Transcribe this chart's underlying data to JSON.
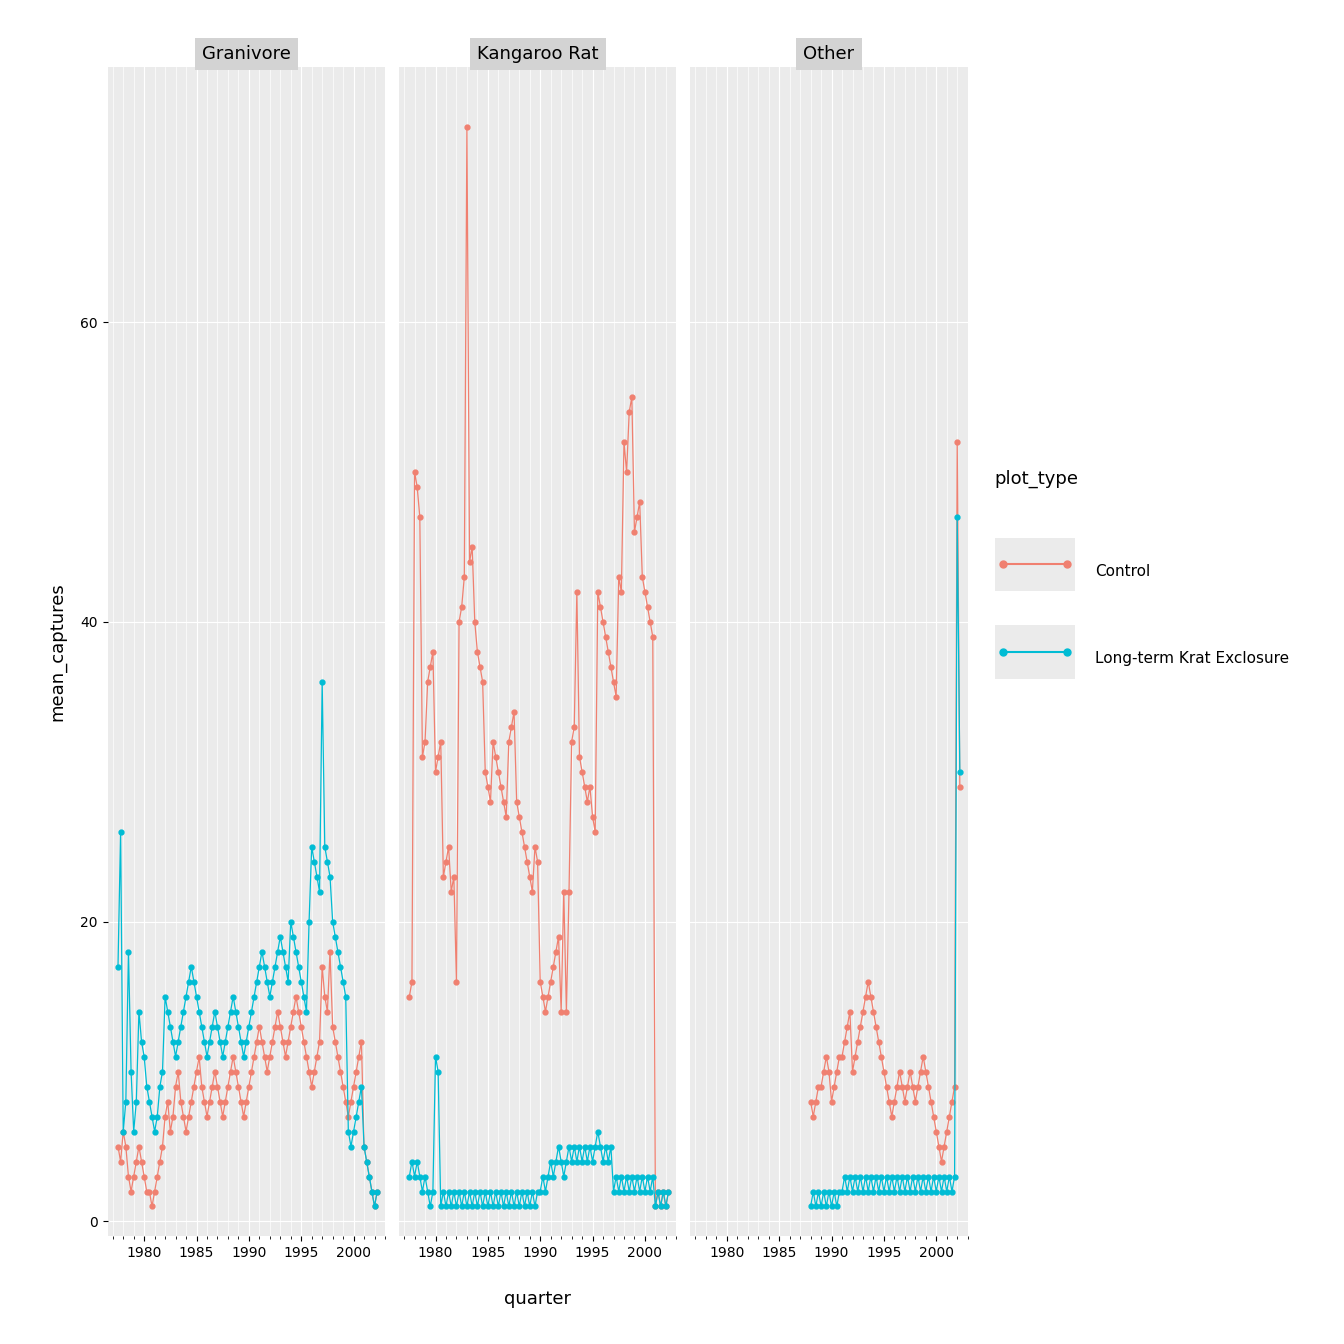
{
  "title": "",
  "ylabel": "mean_captures",
  "xlabel": "quarter",
  "facets": [
    "Granivore",
    "Kangaroo Rat",
    "Other"
  ],
  "colors": {
    "Control": "#F08070",
    "Long-term Krat Exclosure": "#00BCD4"
  },
  "legend_title": "plot_type",
  "background_color": "#EBEBEB",
  "grid_color": "#FFFFFF",
  "ylim": [
    0,
    75
  ],
  "data": {
    "Granivore": {
      "Control": {
        "x": [
          1977.5,
          1977.75,
          1978.0,
          1978.25,
          1978.5,
          1978.75,
          1979.0,
          1979.25,
          1979.5,
          1979.75,
          1980.0,
          1980.25,
          1980.5,
          1980.75,
          1981.0,
          1981.25,
          1981.5,
          1981.75,
          1982.0,
          1982.25,
          1982.5,
          1982.75,
          1983.0,
          1983.25,
          1983.5,
          1983.75,
          1984.0,
          1984.25,
          1984.5,
          1984.75,
          1985.0,
          1985.25,
          1985.5,
          1985.75,
          1986.0,
          1986.25,
          1986.5,
          1986.75,
          1987.0,
          1987.25,
          1987.5,
          1987.75,
          1988.0,
          1988.25,
          1988.5,
          1988.75,
          1989.0,
          1989.25,
          1989.5,
          1989.75,
          1990.0,
          1990.25,
          1990.5,
          1990.75,
          1991.0,
          1991.25,
          1991.5,
          1991.75,
          1992.0,
          1992.25,
          1992.5,
          1992.75,
          1993.0,
          1993.25,
          1993.5,
          1993.75,
          1994.0,
          1994.25,
          1994.5,
          1994.75,
          1995.0,
          1995.25,
          1995.5,
          1995.75,
          1996.0,
          1996.25,
          1996.5,
          1996.75,
          1997.0,
          1997.25,
          1997.5,
          1997.75,
          1998.0,
          1998.25,
          1998.5,
          1998.75,
          1999.0,
          1999.25,
          1999.5,
          1999.75,
          2000.0,
          2000.25,
          2000.5,
          2000.75,
          2001.0,
          2001.25,
          2001.5,
          2001.75,
          2002.0,
          2002.25
        ],
        "y": [
          5,
          4,
          6,
          5,
          3,
          4,
          5,
          6,
          4,
          3,
          5,
          4,
          3,
          2,
          4,
          5,
          6,
          7,
          8,
          9,
          7,
          8,
          10,
          11,
          9,
          8,
          7,
          8,
          9,
          10,
          11,
          12,
          10,
          9,
          8,
          9,
          10,
          11,
          10,
          9,
          8,
          9,
          10,
          11,
          12,
          11,
          10,
          9,
          8,
          9,
          10,
          11,
          12,
          13,
          14,
          13,
          12,
          11,
          12,
          13,
          14,
          15,
          14,
          13,
          12,
          13,
          14,
          15,
          16,
          15,
          14,
          13,
          12,
          11,
          10,
          11,
          12,
          13,
          17,
          16,
          15,
          18,
          14,
          13,
          12,
          11,
          10,
          9,
          8,
          9,
          10,
          11,
          12,
          13,
          5,
          4,
          3,
          2,
          1,
          2
        ]
      },
      "Long-term Krat Exclosure": {
        "x": [
          1977.5,
          1977.75,
          1978.0,
          1978.25,
          1978.5,
          1978.75,
          1979.0,
          1979.25,
          1979.5,
          1979.75,
          1980.0,
          1980.25,
          1980.5,
          1980.75,
          1981.0,
          1981.25,
          1981.5,
          1981.75,
          1982.0,
          1982.25,
          1982.5,
          1982.75,
          1983.0,
          1983.25,
          1983.5,
          1983.75,
          1984.0,
          1984.25,
          1984.5,
          1984.75,
          1985.0,
          1985.25,
          1985.5,
          1985.75,
          1986.0,
          1986.25,
          1986.5,
          1986.75,
          1987.0,
          1987.25,
          1987.5,
          1987.75,
          1988.0,
          1988.25,
          1988.5,
          1988.75,
          1989.0,
          1989.25,
          1989.5,
          1989.75,
          1990.0,
          1990.25,
          1990.5,
          1990.75,
          1991.0,
          1991.25,
          1991.5,
          1991.75,
          1992.0,
          1992.25,
          1992.5,
          1992.75,
          1993.0,
          1993.25,
          1993.5,
          1993.75,
          1994.0,
          1994.25,
          1994.5,
          1994.75,
          1995.0,
          1995.25,
          1995.5,
          1995.75,
          1996.0,
          1996.25,
          1996.5,
          1996.75,
          1997.0,
          1997.25,
          1997.5,
          1997.75,
          1998.0,
          1998.25,
          1998.5,
          1998.75,
          1999.0,
          1999.25,
          1999.5,
          1999.75,
          2000.0,
          2000.25,
          2000.5,
          2000.75,
          2001.0,
          2001.25,
          2001.5,
          2001.75,
          2002.0,
          2002.25
        ],
        "y": [
          17,
          26,
          6,
          8,
          18,
          10,
          6,
          8,
          14,
          12,
          11,
          9,
          8,
          7,
          6,
          7,
          9,
          10,
          15,
          14,
          13,
          12,
          11,
          12,
          13,
          14,
          15,
          16,
          17,
          16,
          15,
          14,
          13,
          12,
          11,
          12,
          13,
          14,
          13,
          12,
          11,
          12,
          13,
          14,
          15,
          14,
          13,
          12,
          11,
          12,
          13,
          14,
          15,
          16,
          17,
          18,
          17,
          16,
          15,
          16,
          17,
          18,
          19,
          18,
          17,
          16,
          20,
          19,
          18,
          17,
          16,
          15,
          14,
          20,
          25,
          24,
          23,
          22,
          36,
          25,
          24,
          23,
          20,
          19,
          18,
          17,
          16,
          15,
          6,
          5,
          6,
          7,
          8,
          9,
          5,
          4,
          3,
          2,
          1,
          2
        ]
      }
    },
    "Kangaroo Rat": {
      "Control": {
        "x": [
          1977.5,
          1977.75,
          1978.0,
          1978.25,
          1978.5,
          1978.75,
          1979.0,
          1979.25,
          1979.5,
          1979.75,
          1980.0,
          1980.25,
          1980.5,
          1980.75,
          1981.0,
          1981.25,
          1981.5,
          1981.75,
          1982.0,
          1982.25,
          1982.5,
          1982.75,
          1983.0,
          1983.25,
          1983.5,
          1983.75,
          1984.0,
          1984.25,
          1984.5,
          1984.75,
          1985.0,
          1985.25,
          1985.5,
          1985.75,
          1986.0,
          1986.25,
          1986.5,
          1986.75,
          1987.0,
          1987.25,
          1987.5,
          1987.75,
          1988.0,
          1988.25,
          1988.5,
          1988.75,
          1989.0,
          1989.25,
          1989.5,
          1989.75,
          1990.0,
          1990.25,
          1990.5,
          1990.75,
          1991.0,
          1991.25,
          1991.5,
          1991.75,
          1992.0,
          1992.25,
          1992.5,
          1992.75,
          1993.0,
          1993.25,
          1993.5,
          1993.75,
          1994.0,
          1994.25,
          1994.5,
          1994.75,
          1995.0,
          1995.25,
          1995.5,
          1995.75,
          1996.0,
          1996.25,
          1996.5,
          1996.75,
          1997.0,
          1997.25,
          1997.5,
          1997.75,
          1998.0,
          1998.25,
          1998.5,
          1998.75,
          1999.0,
          1999.25,
          1999.5,
          1999.75,
          2000.0,
          2000.25,
          2000.5,
          2000.75,
          2001.0,
          2001.25,
          2001.5,
          2001.75,
          2002.0,
          2002.25
        ],
        "y": [
          15,
          16,
          50,
          49,
          47,
          31,
          32,
          36,
          37,
          38,
          30,
          31,
          32,
          23,
          24,
          25,
          22,
          23,
          16,
          40,
          41,
          43,
          73,
          44,
          45,
          40,
          38,
          37,
          36,
          30,
          29,
          28,
          32,
          31,
          30,
          29,
          28,
          27,
          32,
          33,
          34,
          28,
          27,
          26,
          25,
          24,
          23,
          22,
          25,
          24,
          16,
          15,
          14,
          15,
          16,
          17,
          18,
          19,
          14,
          22,
          14,
          22,
          32,
          33,
          42,
          31,
          30,
          29,
          28,
          29,
          27,
          26,
          42,
          41,
          40,
          39,
          38,
          37,
          36,
          35,
          43,
          42,
          52,
          50,
          54,
          55,
          46,
          47,
          48,
          43,
          42,
          41,
          40,
          39,
          1,
          2,
          1,
          2,
          1,
          2
        ]
      },
      "Long-term Krat Exclosure": {
        "x": [
          1977.5,
          1977.75,
          1978.0,
          1978.25,
          1978.5,
          1978.75,
          1979.0,
          1979.25,
          1979.5,
          1979.75,
          1980.0,
          1980.25,
          1980.5,
          1980.75,
          1981.0,
          1981.25,
          1981.5,
          1981.75,
          1982.0,
          1982.25,
          1982.5,
          1982.75,
          1983.0,
          1983.25,
          1983.5,
          1983.75,
          1984.0,
          1984.25,
          1984.5,
          1984.75,
          1985.0,
          1985.25,
          1985.5,
          1985.75,
          1986.0,
          1986.25,
          1986.5,
          1986.75,
          1987.0,
          1987.25,
          1987.5,
          1987.75,
          1988.0,
          1988.25,
          1988.5,
          1988.75,
          1989.0,
          1989.25,
          1989.5,
          1989.75,
          1990.0,
          1990.25,
          1990.5,
          1990.75,
          1991.0,
          1991.25,
          1991.5,
          1991.75,
          1992.0,
          1992.25,
          1992.5,
          1992.75,
          1993.0,
          1993.25,
          1993.5,
          1993.75,
          1994.0,
          1994.25,
          1994.5,
          1994.75,
          1995.0,
          1995.25,
          1995.5,
          1995.75,
          1996.0,
          1996.25,
          1996.5,
          1996.75,
          1997.0,
          1997.25,
          1997.5,
          1997.75,
          1998.0,
          1998.25,
          1998.5,
          1998.75,
          1999.0,
          1999.25,
          1999.5,
          1999.75,
          2000.0,
          2000.25,
          2000.5,
          2000.75,
          2001.0,
          2001.25,
          2001.5,
          2001.75,
          2002.0,
          2002.25
        ],
        "y": [
          3,
          4,
          3,
          4,
          3,
          2,
          3,
          2,
          1,
          2,
          11,
          10,
          1,
          2,
          1,
          2,
          1,
          2,
          1,
          2,
          1,
          2,
          1,
          2,
          1,
          2,
          1,
          2,
          1,
          2,
          1,
          2,
          1,
          2,
          1,
          2,
          1,
          2,
          1,
          2,
          1,
          2,
          1,
          2,
          1,
          2,
          1,
          2,
          1,
          2,
          2,
          3,
          2,
          3,
          4,
          3,
          4,
          5,
          4,
          3,
          4,
          5,
          4,
          5,
          4,
          5,
          4,
          5,
          4,
          5,
          4,
          5,
          6,
          5,
          4,
          5,
          4,
          5,
          2,
          3,
          2,
          3,
          2,
          3,
          2,
          3,
          2,
          3,
          2,
          3,
          2,
          3,
          2,
          3,
          1,
          2,
          1,
          2,
          1,
          2
        ]
      }
    },
    "Other": {
      "Control": {
        "x": [
          1988.0,
          1988.25,
          1988.5,
          1988.75,
          1989.0,
          1989.25,
          1989.5,
          1989.75,
          1990.0,
          1990.25,
          1990.5,
          1990.75,
          1991.0,
          1991.25,
          1991.5,
          1991.75,
          1992.0,
          1992.25,
          1992.5,
          1992.75,
          1993.0,
          1993.25,
          1993.5,
          1993.75,
          1994.0,
          1994.25,
          1994.5,
          1994.75,
          1995.0,
          1995.25,
          1995.5,
          1995.75,
          1996.0,
          1996.25,
          1996.5,
          1996.75,
          1997.0,
          1997.25,
          1997.5,
          1997.75,
          1998.0,
          1998.25,
          1998.5,
          1998.75,
          1999.0,
          1999.25,
          1999.5,
          1999.75,
          2000.0,
          2000.25,
          2000.5,
          2000.75,
          2001.0,
          2001.25,
          2001.5,
          2001.75,
          2002.0,
          2002.25
        ],
        "y": [
          8,
          7,
          8,
          9,
          9,
          10,
          11,
          10,
          8,
          9,
          10,
          11,
          11,
          12,
          13,
          14,
          10,
          11,
          12,
          13,
          14,
          15,
          16,
          15,
          14,
          13,
          12,
          11,
          10,
          9,
          8,
          7,
          8,
          9,
          10,
          9,
          8,
          9,
          10,
          9,
          8,
          9,
          10,
          11,
          10,
          9,
          8,
          7,
          6,
          5,
          4,
          5,
          6,
          7,
          8,
          9,
          52,
          29
        ]
      },
      "Long-term Krat Exclosure": {
        "x": [
          1988.0,
          1988.25,
          1988.5,
          1988.75,
          1989.0,
          1989.25,
          1989.5,
          1989.75,
          1990.0,
          1990.25,
          1990.5,
          1990.75,
          1991.0,
          1991.25,
          1991.5,
          1991.75,
          1992.0,
          1992.25,
          1992.5,
          1992.75,
          1993.0,
          1993.25,
          1993.5,
          1993.75,
          1994.0,
          1994.25,
          1994.5,
          1994.75,
          1995.0,
          1995.25,
          1995.5,
          1995.75,
          1996.0,
          1996.25,
          1996.5,
          1996.75,
          1997.0,
          1997.25,
          1997.5,
          1997.75,
          1998.0,
          1998.25,
          1998.5,
          1998.75,
          1999.0,
          1999.25,
          1999.5,
          1999.75,
          2000.0,
          2000.25,
          2000.5,
          2000.75,
          2001.0,
          2001.25,
          2001.5,
          2001.75,
          2002.0,
          2002.25
        ],
        "y": [
          1,
          2,
          1,
          2,
          1,
          2,
          1,
          2,
          1,
          2,
          1,
          2,
          2,
          3,
          2,
          3,
          2,
          3,
          2,
          3,
          2,
          3,
          2,
          3,
          2,
          3,
          2,
          3,
          2,
          3,
          2,
          3,
          2,
          3,
          2,
          3,
          2,
          3,
          2,
          3,
          2,
          3,
          2,
          3,
          2,
          3,
          2,
          3,
          2,
          3,
          2,
          3,
          2,
          3,
          2,
          3,
          47,
          30
        ]
      }
    }
  }
}
